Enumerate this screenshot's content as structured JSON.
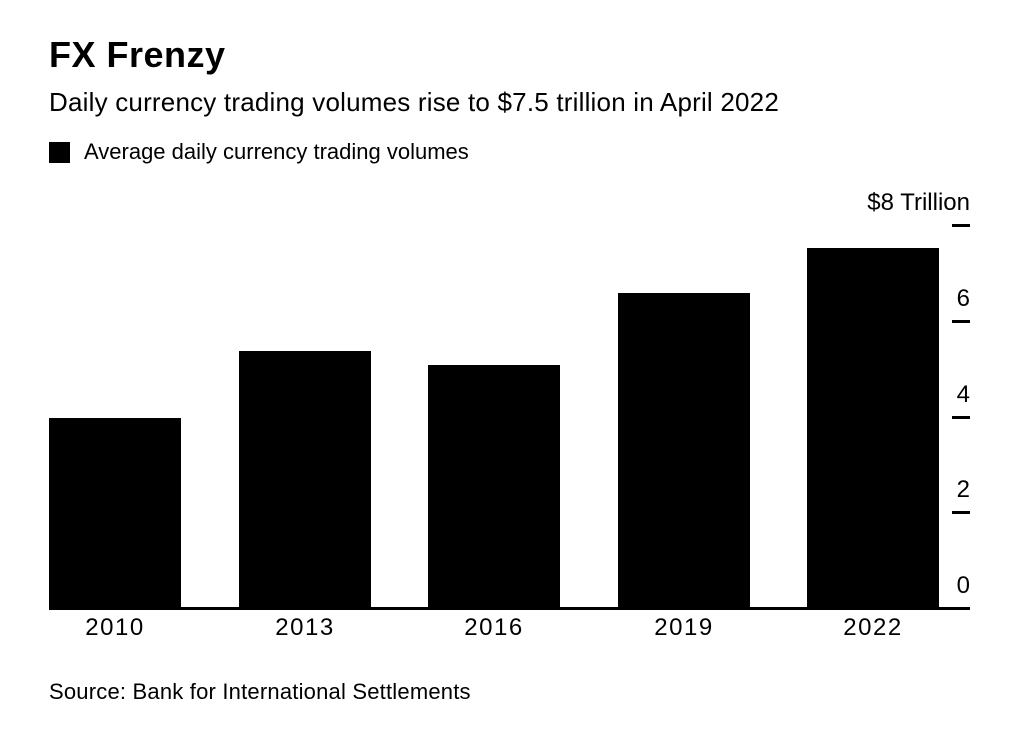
{
  "page": {
    "background_color": "#ffffff",
    "text_color": "#000000"
  },
  "header": {
    "title": "FX Frenzy",
    "subtitle": "Daily currency trading volumes rise to $7.5 trillion in April 2022"
  },
  "legend": {
    "swatch_icon": "black-square-swatch",
    "swatch_color": "#000000",
    "label": "Average daily currency trading volumes"
  },
  "chart_data": {
    "type": "bar",
    "title": "FX Frenzy",
    "subtitle": "Daily currency trading volumes rise to $7.5 trillion in April 2022",
    "series_name": "Average daily currency trading volumes",
    "categories": [
      "2010",
      "2013",
      "2016",
      "2019",
      "2022"
    ],
    "values": [
      3.97,
      5.36,
      5.07,
      6.58,
      7.51
    ],
    "bar_color": "#000000",
    "ylim": [
      0,
      8
    ],
    "ytick_step": 2,
    "yticks": [
      {
        "value": 8,
        "label": "$8 Trillion"
      },
      {
        "value": 6,
        "label": "6"
      },
      {
        "value": 4,
        "label": "4"
      },
      {
        "value": 2,
        "label": "2"
      },
      {
        "value": 0,
        "label": "0"
      }
    ],
    "axis_side": "right",
    "legend_position": "top-left",
    "grid": false
  },
  "footer": {
    "source": "Source: Bank for International Settlements"
  }
}
